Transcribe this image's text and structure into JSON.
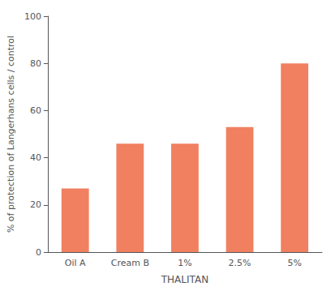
{
  "chart_data": {
    "type": "bar",
    "categories": [
      "Oil A",
      "Cream B",
      "1%",
      "2.5%",
      "5%"
    ],
    "values": [
      27,
      46,
      46,
      53,
      80
    ],
    "color": "#F08060",
    "xlabel": "THALITAN",
    "ylabel": "% of protection of Langerhans cells / control",
    "ylim": [
      0,
      100
    ],
    "yticks": [
      0,
      20,
      40,
      60,
      80,
      100
    ],
    "grid": false
  }
}
